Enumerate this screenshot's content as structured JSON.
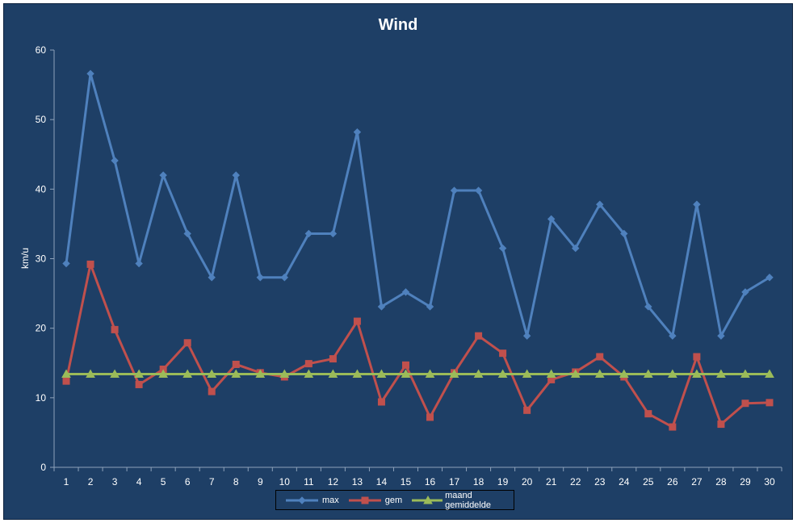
{
  "chart_data": {
    "type": "line",
    "title": "Wind",
    "xlabel": "",
    "ylabel": "km/u",
    "ylim": [
      0,
      60
    ],
    "y_ticks": [
      0,
      10,
      20,
      30,
      40,
      50,
      60
    ],
    "categories": [
      "1",
      "2",
      "3",
      "4",
      "5",
      "6",
      "7",
      "8",
      "9",
      "10",
      "11",
      "12",
      "13",
      "14",
      "15",
      "16",
      "17",
      "18",
      "19",
      "20",
      "21",
      "22",
      "23",
      "24",
      "25",
      "26",
      "27",
      "28",
      "29",
      "30"
    ],
    "series": [
      {
        "name": "max",
        "color": "#4f81bd",
        "marker": "diamond",
        "values": [
          29.3,
          56.6,
          44.1,
          29.3,
          42.0,
          33.6,
          27.3,
          42.0,
          27.3,
          27.3,
          33.6,
          33.6,
          48.2,
          23.1,
          25.2,
          23.1,
          39.8,
          39.8,
          31.5,
          18.9,
          35.7,
          31.5,
          37.8,
          33.6,
          23.1,
          18.9,
          37.8,
          18.9,
          25.2,
          27.3
        ]
      },
      {
        "name": "gem",
        "color": "#c0504d",
        "marker": "square",
        "values": [
          12.4,
          29.2,
          19.8,
          11.9,
          14.1,
          17.9,
          10.9,
          14.8,
          13.6,
          13.0,
          14.9,
          15.6,
          21.0,
          9.4,
          14.7,
          7.2,
          13.6,
          18.9,
          16.4,
          8.2,
          12.6,
          13.7,
          15.9,
          13.0,
          7.7,
          5.8,
          15.9,
          6.2,
          9.2,
          9.3
        ]
      },
      {
        "name": "maand gemiddelde",
        "color": "#9bbb59",
        "marker": "triangle",
        "values": [
          13.4,
          13.4,
          13.4,
          13.4,
          13.4,
          13.4,
          13.4,
          13.4,
          13.4,
          13.4,
          13.4,
          13.4,
          13.4,
          13.4,
          13.4,
          13.4,
          13.4,
          13.4,
          13.4,
          13.4,
          13.4,
          13.4,
          13.4,
          13.4,
          13.4,
          13.4,
          13.4,
          13.4,
          13.4,
          13.4
        ]
      }
    ],
    "grid": false,
    "legend_position": "bottom",
    "background_color": "#1e3f66"
  }
}
